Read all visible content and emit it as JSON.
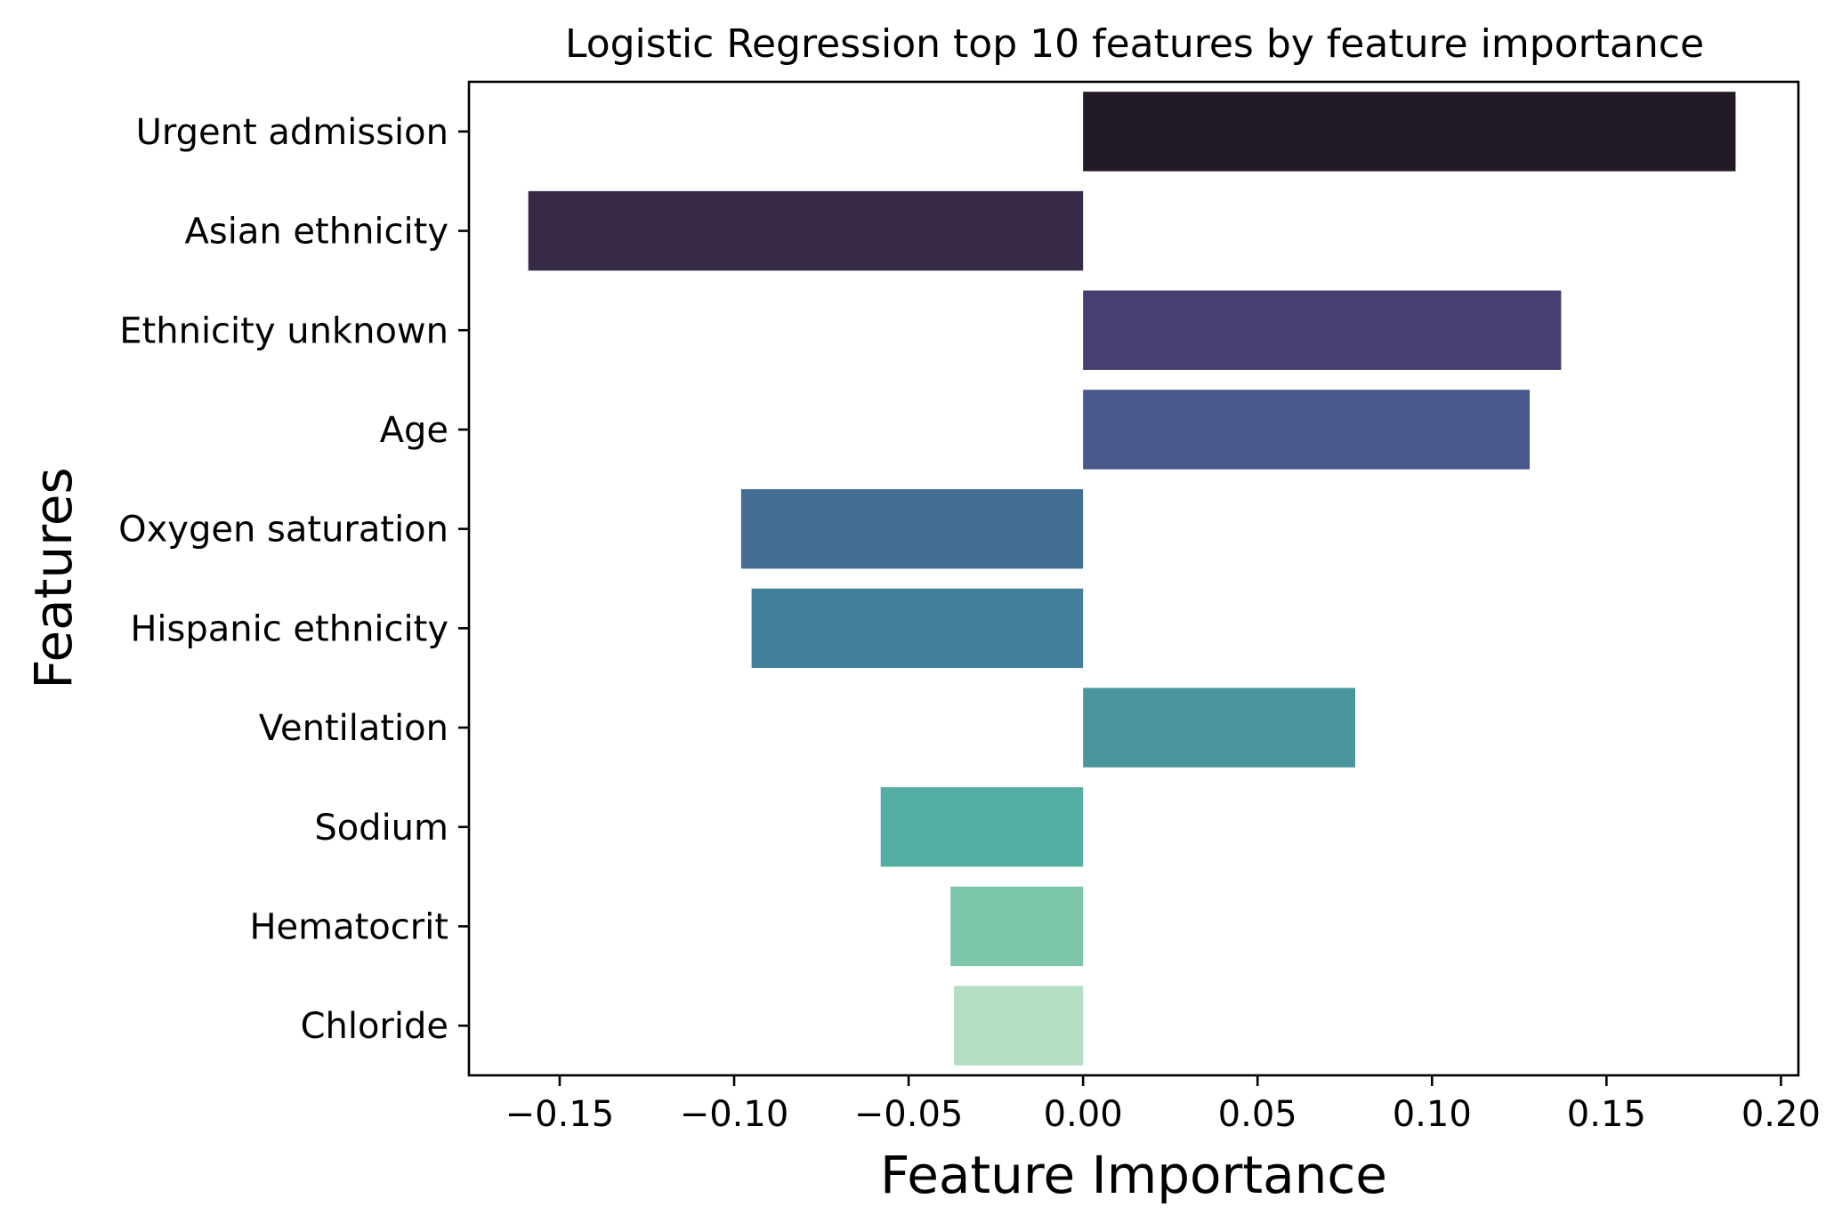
{
  "chart_data": {
    "type": "bar",
    "orientation": "horizontal",
    "title": "Logistic Regression top 10 features by feature importance",
    "xlabel": "Feature Importance",
    "ylabel": "Features",
    "categories": [
      "Urgent admission",
      "Asian ethnicity",
      "Ethnicity unknown",
      "Age",
      "Oxygen saturation",
      "Hispanic ethnicity",
      "Ventilation",
      "Sodium",
      "Hematocrit",
      "Chloride"
    ],
    "values": [
      0.187,
      -0.159,
      0.137,
      0.128,
      -0.098,
      -0.095,
      0.078,
      -0.058,
      -0.038,
      -0.037
    ],
    "colors": [
      "#231a28",
      "#362a47",
      "#473f6f",
      "#48588c",
      "#436d93",
      "#43809b",
      "#48969c",
      "#55aea3",
      "#7cc6aa",
      "#b4dec3"
    ],
    "xlim": [
      -0.176,
      0.205
    ],
    "xticks": [
      -0.15,
      -0.1,
      -0.05,
      0.0,
      0.05,
      0.1,
      0.15,
      0.2
    ],
    "xtick_labels": [
      "−0.15",
      "−0.10",
      "−0.05",
      "0.00",
      "0.05",
      "0.10",
      "0.15",
      "0.20"
    ],
    "grid": false,
    "legend": "none"
  }
}
